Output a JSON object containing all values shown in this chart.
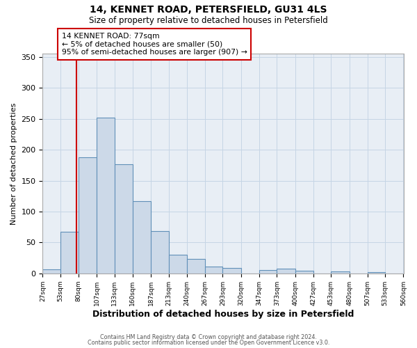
{
  "title": "14, KENNET ROAD, PETERSFIELD, GU31 4LS",
  "subtitle": "Size of property relative to detached houses in Petersfield",
  "xlabel": "Distribution of detached houses by size in Petersfield",
  "ylabel": "Number of detached properties",
  "bar_edges": [
    27,
    53,
    80,
    107,
    133,
    160,
    187,
    213,
    240,
    267,
    293,
    320,
    347,
    373,
    400,
    427,
    453,
    480,
    507,
    533,
    560
  ],
  "bar_heights": [
    7,
    67,
    188,
    252,
    176,
    117,
    69,
    30,
    23,
    11,
    9,
    0,
    5,
    8,
    4,
    0,
    3,
    0,
    2,
    0
  ],
  "bar_color": "#ccd9e8",
  "bar_edge_color": "#6090b8",
  "grid_color": "#c5d5e5",
  "vline_x": 77,
  "vline_color": "#cc0000",
  "annotation_box_text": "14 KENNET ROAD: 77sqm\n← 5% of detached houses are smaller (50)\n95% of semi-detached houses are larger (907) →",
  "annotation_box_color": "#cc0000",
  "ylim": [
    0,
    355
  ],
  "yticks": [
    0,
    50,
    100,
    150,
    200,
    250,
    300,
    350
  ],
  "footer_line1": "Contains HM Land Registry data © Crown copyright and database right 2024.",
  "footer_line2": "Contains public sector information licensed under the Open Government Licence v3.0.",
  "bg_color": "#ffffff",
  "plot_bg_color": "#e8eef5"
}
